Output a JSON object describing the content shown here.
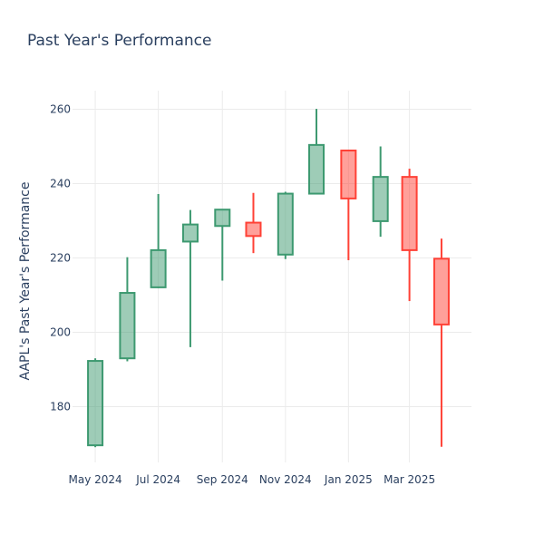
{
  "chart_data": {
    "type": "candlestick",
    "title": "Past Year's Performance",
    "xlabel": "",
    "ylabel": "AAPL's Past Year's Performance",
    "y_ticks": [
      180,
      200,
      220,
      240,
      260
    ],
    "ylim": [
      165,
      265
    ],
    "x_ticks": [
      {
        "date": "2024-05-01",
        "label": "May 2024"
      },
      {
        "date": "2024-07-01",
        "label": "Jul 2024"
      },
      {
        "date": "2024-09-01",
        "label": "Sep 2024"
      },
      {
        "date": "2024-11-01",
        "label": "Nov 2024"
      },
      {
        "date": "2025-01-01",
        "label": "Jan 2025"
      },
      {
        "date": "2025-03-01",
        "label": "Mar 2025"
      }
    ],
    "xlim": [
      "2024-04-09",
      "2025-04-30"
    ],
    "grid": true,
    "colors": {
      "increasing": "#3d9970",
      "decreasing": "#ff4136"
    },
    "candles": [
      {
        "date": "2024-05-01",
        "open": 169.6,
        "high": 193.0,
        "low": 169.1,
        "close": 192.3
      },
      {
        "date": "2024-06-01",
        "open": 193.0,
        "high": 220.2,
        "low": 192.2,
        "close": 210.6
      },
      {
        "date": "2024-07-01",
        "open": 212.1,
        "high": 237.2,
        "low": 211.9,
        "close": 222.1
      },
      {
        "date": "2024-08-01",
        "open": 224.4,
        "high": 232.9,
        "low": 196.0,
        "close": 229.0
      },
      {
        "date": "2024-09-01",
        "open": 228.6,
        "high": 233.1,
        "low": 213.9,
        "close": 233.0
      },
      {
        "date": "2024-10-01",
        "open": 229.5,
        "high": 237.5,
        "low": 221.3,
        "close": 225.9
      },
      {
        "date": "2024-11-01",
        "open": 220.9,
        "high": 237.8,
        "low": 219.7,
        "close": 237.3
      },
      {
        "date": "2024-12-01",
        "open": 237.3,
        "high": 260.1,
        "low": 237.2,
        "close": 250.4
      },
      {
        "date": "2025-01-01",
        "open": 248.9,
        "high": 249.1,
        "low": 219.4,
        "close": 236.0
      },
      {
        "date": "2025-02-01",
        "open": 229.9,
        "high": 250.0,
        "low": 225.7,
        "close": 241.8
      },
      {
        "date": "2025-03-01",
        "open": 241.8,
        "high": 244.0,
        "low": 208.4,
        "close": 222.1
      },
      {
        "date": "2025-04-01",
        "open": 219.8,
        "high": 225.2,
        "low": 169.2,
        "close": 202.1
      }
    ]
  }
}
